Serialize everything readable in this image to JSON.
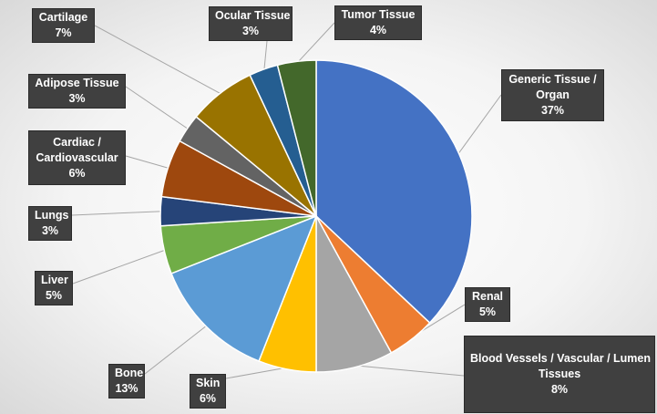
{
  "chart_data": {
    "type": "pie",
    "slices": [
      {
        "label": "Generic Tissue / Organ",
        "label_lines": [
          "Generic Tissue /",
          "Organ"
        ],
        "value": 37,
        "display": "37%",
        "color": "#4472C4"
      },
      {
        "label": "Renal",
        "label_lines": [
          "Renal"
        ],
        "value": 5,
        "display": "5%",
        "color": "#ED7D31"
      },
      {
        "label": "Blood Vessels / Vascular / Lumen Tissues",
        "label_lines": [
          "Blood Vessels / Vascular / Lumen",
          "Tissues"
        ],
        "value": 8,
        "display": "8%",
        "color": "#A5A5A5"
      },
      {
        "label": "Skin",
        "label_lines": [
          "Skin"
        ],
        "value": 6,
        "display": "6%",
        "color": "#FFC000"
      },
      {
        "label": "Bone",
        "label_lines": [
          "Bone"
        ],
        "value": 13,
        "display": "13%",
        "color": "#5B9BD5"
      },
      {
        "label": "Liver",
        "label_lines": [
          "Liver"
        ],
        "value": 5,
        "display": "5%",
        "color": "#70AD47"
      },
      {
        "label": "Lungs",
        "label_lines": [
          "Lungs"
        ],
        "value": 3,
        "display": "3%",
        "color": "#264478"
      },
      {
        "label": "Cardiac / Cardiovascular",
        "label_lines": [
          "Cardiac /",
          "Cardiovascular"
        ],
        "value": 6,
        "display": "6%",
        "color": "#9E480E"
      },
      {
        "label": "Adipose Tissue",
        "label_lines": [
          "Adipose Tissue"
        ],
        "value": 3,
        "display": "3%",
        "color": "#636363"
      },
      {
        "label": "Cartilage",
        "label_lines": [
          "Cartilage"
        ],
        "value": 7,
        "display": "7%",
        "color": "#997300"
      },
      {
        "label": "Ocular Tissue",
        "label_lines": [
          "Ocular Tissue"
        ],
        "value": 3,
        "display": "3%",
        "color": "#255E91"
      },
      {
        "label": "Tumor Tissue",
        "label_lines": [
          "Tumor Tissue"
        ],
        "value": 4,
        "display": "4%",
        "color": "#43682B"
      }
    ],
    "start": "12 o'clock",
    "direction": "clockwise",
    "legend": "none",
    "data_labels": "callouts"
  }
}
